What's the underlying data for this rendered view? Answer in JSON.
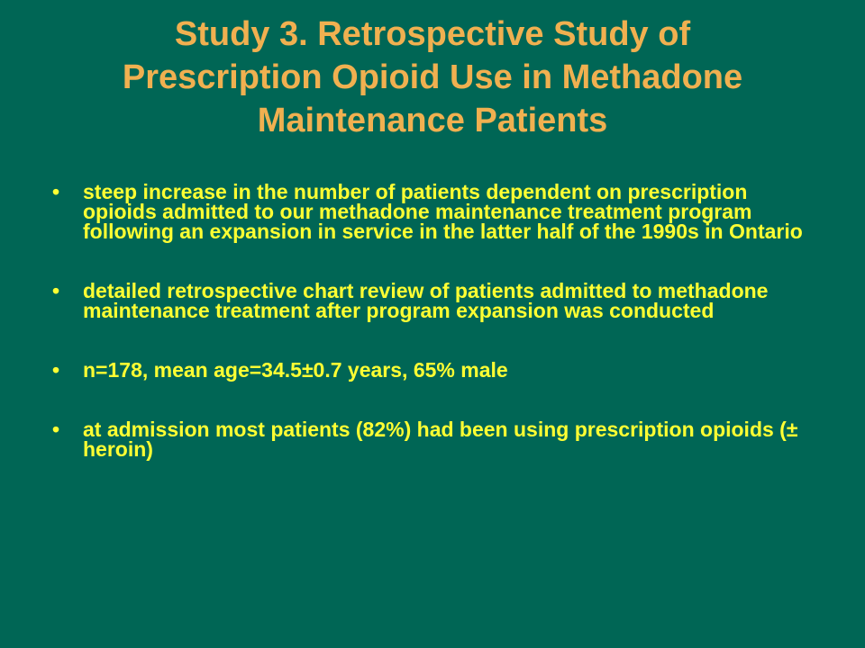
{
  "slide": {
    "title_lines": [
      "Study 3. Retrospective Study of",
      "Prescription Opioid Use in Methadone",
      "Maintenance Patients"
    ],
    "bullet_symbol": "•",
    "bullets": [
      "steep increase in the number of patients dependent on prescription opioids admitted to our methadone maintenance treatment program following an expansion in service in the latter half of the 1990s in Ontario",
      "detailed retrospective chart review of patients admitted to methadone maintenance treatment after program expansion was conducted",
      "n=178, mean age=34.5±0.7 years, 65% male",
      "at admission most patients (82%) had been using prescription opioids (± heroin)"
    ]
  },
  "colors": {
    "background": "#006655",
    "title": "#F0B050",
    "body_text": "#FFFF33"
  }
}
